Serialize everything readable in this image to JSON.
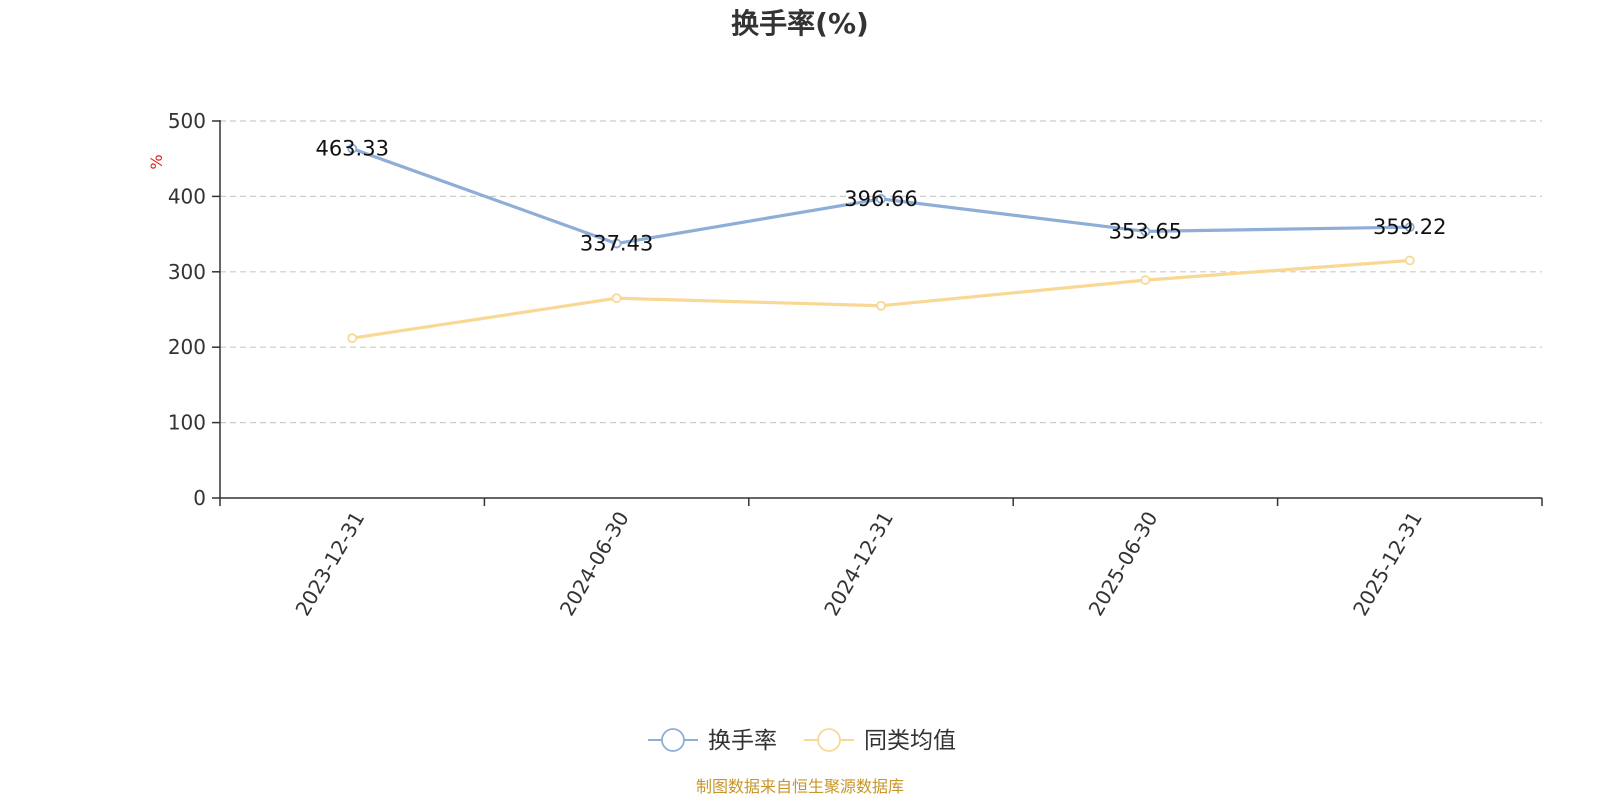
{
  "chart_data": {
    "type": "line",
    "title": "换手率(%)",
    "ylabel": "%",
    "xlabel": "",
    "categories": [
      "2023-12-31",
      "2024-06-30",
      "2024-12-31",
      "2025-06-30",
      "2025-12-31"
    ],
    "series": [
      {
        "name": "换手率",
        "values": [
          463.33,
          337.43,
          396.66,
          353.65,
          359.22
        ],
        "color": "#8eaed8",
        "show_labels": true
      },
      {
        "name": "同类均值",
        "values": [
          212,
          265,
          255,
          289,
          315
        ],
        "color": "#f9d896",
        "show_labels": false
      }
    ],
    "ylim": [
      0,
      500
    ],
    "yticks": [
      0,
      100,
      200,
      300,
      400,
      500
    ],
    "grid": true,
    "legend_position": "bottom-center"
  },
  "footer": {
    "source": "制图数据来自恒生聚源数据库"
  }
}
